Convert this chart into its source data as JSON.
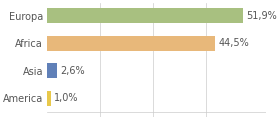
{
  "categories": [
    "America",
    "Asia",
    "Africa",
    "Europa"
  ],
  "values": [
    1.0,
    2.6,
    44.5,
    51.9
  ],
  "bar_colors": [
    "#e8c84a",
    "#6080b8",
    "#e8b87a",
    "#a8c080"
  ],
  "labels": [
    "1,0%",
    "2,6%",
    "44,5%",
    "51,9%"
  ],
  "xlim": [
    0,
    58
  ],
  "background_color": "#ffffff",
  "bar_height": 0.55,
  "label_fontsize": 7.0,
  "tick_fontsize": 7.0,
  "grid_color": "#cccccc",
  "text_color": "#555555"
}
